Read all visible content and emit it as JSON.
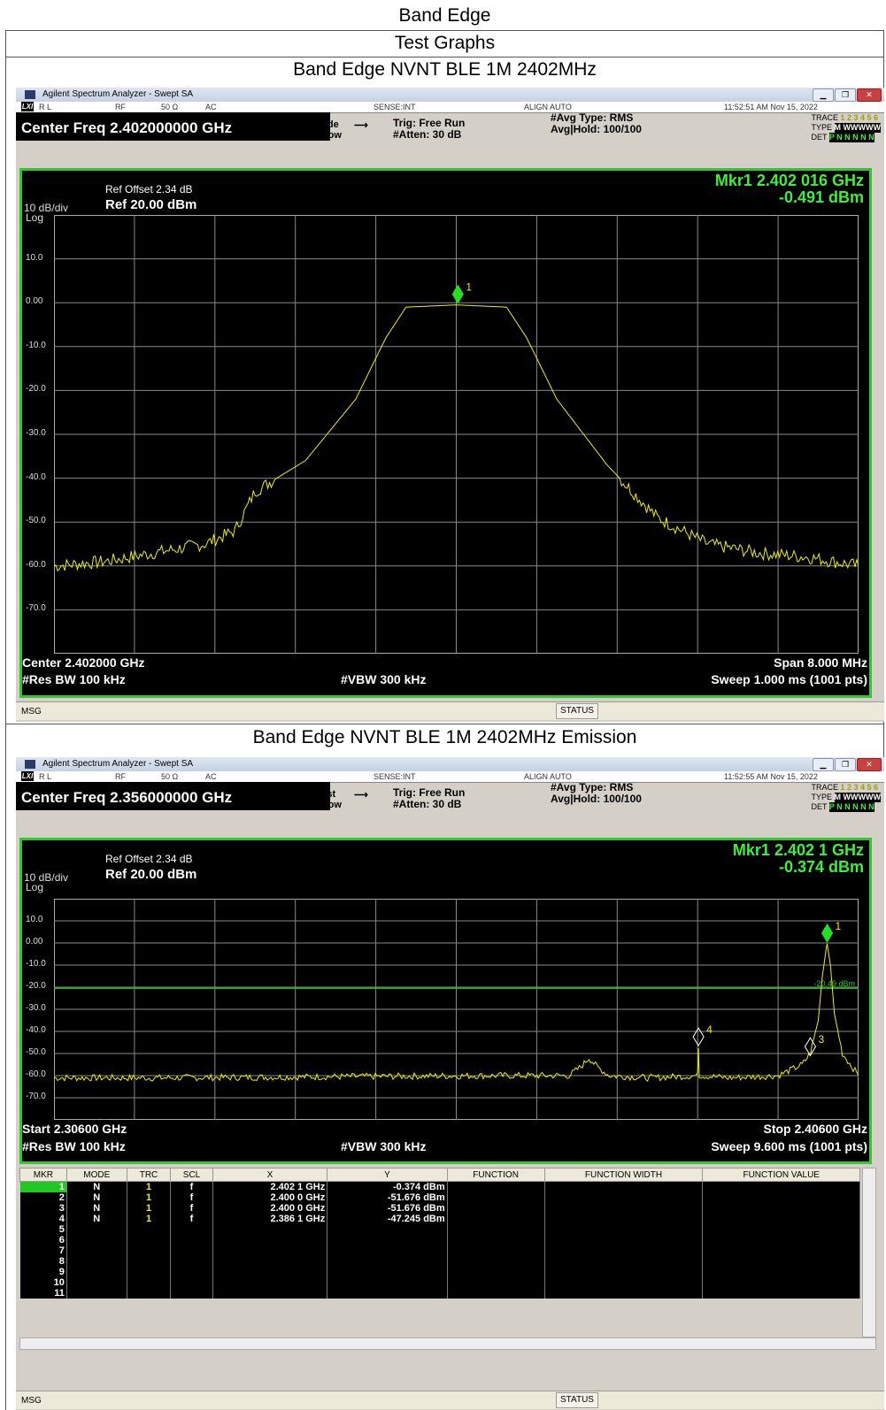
{
  "doc": {
    "title": "Band Edge",
    "subtitle": "Test Graphs",
    "caption1": "Band Edge NVNT BLE 1M 2402MHz",
    "caption2": "Band Edge NVNT BLE 1M 2402MHz Emission"
  },
  "app_title": "Agilent Spectrum Analyzer - Swept SA",
  "status_labels": {
    "lxi": "LXI",
    "rl": "R L",
    "rf": "RF",
    "ohm": "50 Ω",
    "ac": "AC",
    "sense": "SENSE:INT",
    "align": "ALIGN AUTO"
  },
  "trace_info": {
    "trace_label": "TRACE",
    "trace_nums": "1 2 3 4 5 6",
    "type_label": "TYPE",
    "type_val": "M WWWWW",
    "det_label": "DET",
    "det_val": "P N N N N N"
  },
  "analyzers": [
    {
      "timestamp": "11:52:51 AM Nov 15, 2022",
      "center_freq": "Center Freq 2.402000000 GHz",
      "pno": "PNO: Wide",
      "ifgain": "IFGain:Low",
      "trig": "Trig: Free Run",
      "atten": "#Atten: 30 dB",
      "avg_type": "#Avg Type: RMS",
      "avg_hold": "Avg|Hold: 100/100",
      "ref_offset": "Ref Offset 2.34 dB",
      "ref_level": "Ref 20.00 dBm",
      "scale": "10 dB/div",
      "log": "Log",
      "marker_freq": "Mkr1 2.402 016 GHz",
      "marker_amp": "-0.491 dBm",
      "y_ticks": [
        "10.0",
        "0.00",
        "-10.0",
        "-20.0",
        "-30.0",
        "-40.0",
        "-50.0",
        "-60.0",
        "-70.0"
      ],
      "bottom_left1": "Center 2.402000 GHz",
      "bottom_right1": "Span 8.000 MHz",
      "res_bw": "#Res BW 100 kHz",
      "vbw": "#VBW 300 kHz",
      "sweep": "Sweep  1.000 ms (1001 pts)",
      "msg": "MSG",
      "status": "STATUS",
      "marker_label": "1",
      "chart_data": {
        "type": "line",
        "x": [
          2.398,
          2.3985,
          2.399,
          2.3995,
          2.3998,
          2.4,
          2.4005,
          2.401,
          2.4013,
          2.4015,
          2.402,
          2.4025,
          2.4027,
          2.403,
          2.4035,
          2.404,
          2.4045,
          2.405,
          2.4055,
          2.406
        ],
        "series": [
          {
            "values": [
              -60,
              -59,
              -57,
              -55,
              -52,
              -43,
              -36,
              -22,
              -8,
              -1,
              -0.5,
              -1,
              -8,
              -22,
              -37,
              -49,
              -55,
              -57,
              -58,
              -60
            ]
          }
        ],
        "xlim": [
          2.398,
          2.406
        ],
        "ylim": [
          -80,
          20
        ],
        "marker": {
          "x": 2.402016,
          "y": -0.491,
          "label": "1"
        }
      }
    },
    {
      "timestamp": "11:52:55 AM Nov 15, 2022",
      "center_freq": "Center Freq 2.356000000 GHz",
      "pno": "PNO: Fast",
      "ifgain": "IFGain:Low",
      "trig": "Trig: Free Run",
      "atten": "#Atten: 30 dB",
      "avg_type": "#Avg Type: RMS",
      "avg_hold": "Avg|Hold: 100/100",
      "ref_offset": "Ref Offset 2.34 dB",
      "ref_level": "Ref 20.00 dBm",
      "scale": "10 dB/div",
      "log": "Log",
      "marker_freq": "Mkr1 2.402 1 GHz",
      "marker_amp": "-0.374 dBm",
      "limit_label": "-20.49 dBm",
      "y_ticks": [
        "10.0",
        "0.00",
        "-10.0",
        "-20.0",
        "-30.0",
        "-40.0",
        "-50.0",
        "-60.0",
        "-70.0"
      ],
      "bottom_left1": "Start 2.30600 GHz",
      "bottom_right1": "Stop 2.40600 GHz",
      "res_bw": "#Res BW 100 kHz",
      "vbw": "#VBW 300 kHz",
      "sweep": "Sweep  9.600 ms (1001 pts)",
      "msg": "MSG",
      "status": "STATUS",
      "marker_labels": [
        "1",
        "3",
        "4"
      ],
      "chart_data": {
        "type": "line",
        "x": [
          2.306,
          2.32,
          2.34,
          2.36,
          2.37,
          2.3715,
          2.3725,
          2.3735,
          2.375,
          2.38,
          2.386,
          2.3861,
          2.3862,
          2.39,
          2.396,
          2.399,
          2.4,
          2.401,
          2.4015,
          2.402,
          2.4021,
          2.4025,
          2.403,
          2.404,
          2.406
        ],
        "series": [
          {
            "values": [
              -61,
              -61,
              -60.5,
              -60,
              -60,
              -56,
              -52,
              -56,
              -60,
              -61,
              -60,
              -47,
              -60,
              -61,
              -60,
              -55,
              -50,
              -35,
              -15,
              -2,
              -0.4,
              -10,
              -32,
              -50,
              -60
            ]
          }
        ],
        "xlim": [
          2.306,
          2.406
        ],
        "ylim": [
          -80,
          20
        ],
        "limit_line": -20.49,
        "markers": [
          {
            "label": "1",
            "x": 2.4021,
            "y": -0.374
          },
          {
            "label": "3",
            "x": 2.4,
            "y": -51.676
          },
          {
            "label": "4",
            "x": 2.3861,
            "y": -47.245
          }
        ]
      },
      "marker_table": {
        "headers": [
          "MKR",
          "MODE",
          "TRC",
          "SCL",
          "X",
          "Y",
          "FUNCTION",
          "FUNCTION WIDTH",
          "FUNCTION VALUE"
        ],
        "rows": [
          [
            "1",
            "N",
            "1",
            "f",
            "2.402 1 GHz",
            "-0.374 dBm"
          ],
          [
            "2",
            "N",
            "1",
            "f",
            "2.400 0 GHz",
            "-51.676 dBm"
          ],
          [
            "3",
            "N",
            "1",
            "f",
            "2.400 0 GHz",
            "-51.676 dBm"
          ],
          [
            "4",
            "N",
            "1",
            "f",
            "2.386 1 GHz",
            "-47.245 dBm"
          ],
          [
            "5",
            "",
            "",
            "",
            "",
            ""
          ],
          [
            "6",
            "",
            "",
            "",
            "",
            ""
          ],
          [
            "7",
            "",
            "",
            "",
            "",
            ""
          ],
          [
            "8",
            "",
            "",
            "",
            "",
            ""
          ],
          [
            "9",
            "",
            "",
            "",
            "",
            ""
          ],
          [
            "10",
            "",
            "",
            "",
            "",
            ""
          ],
          [
            "11",
            "",
            "",
            "",
            "",
            ""
          ]
        ]
      }
    }
  ],
  "colors": {
    "trace": "#f0f000",
    "marker": "#22e022",
    "screen_border": "#32c832",
    "limit": "#22c822"
  }
}
